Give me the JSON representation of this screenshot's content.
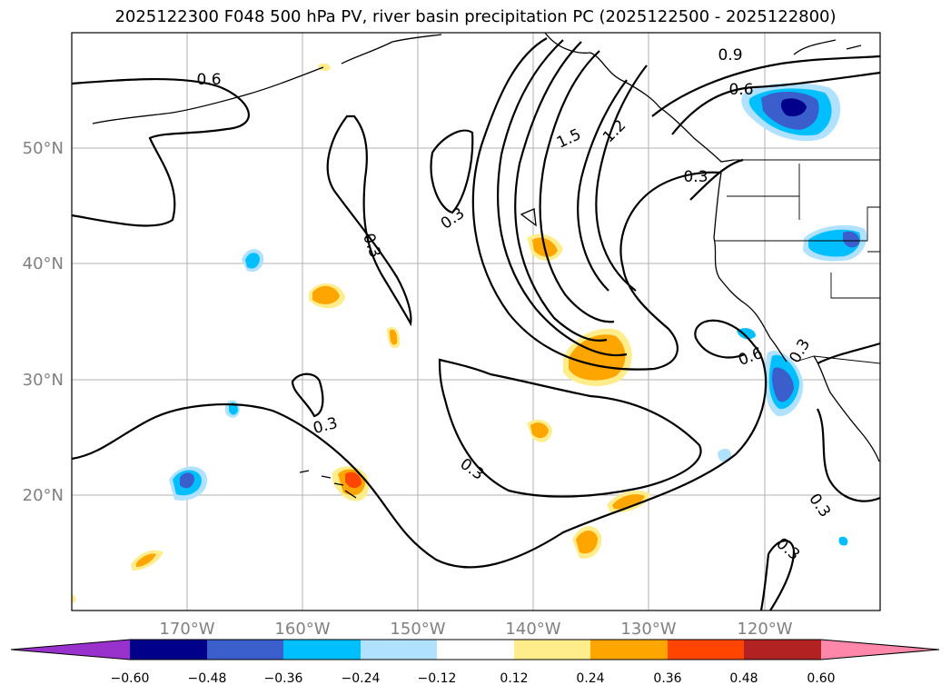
{
  "title": "2025122300 F048 500 hPa PV, river basin precipitation PC (2025122500 - 2025122800)",
  "map": {
    "lat_labels": [
      "50°N",
      "40°N",
      "30°N",
      "20°N"
    ],
    "lon_labels": [
      "170°W",
      "160°W",
      "150°W",
      "140°W",
      "130°W",
      "120°W"
    ],
    "extent": {
      "lon_min": -180,
      "lon_max": -110,
      "lat_min": 10,
      "lat_max": 60
    }
  },
  "contours": {
    "labels": [
      "0.6",
      "0.9",
      "0.6",
      "1.5",
      "1.2",
      "0.3",
      "0.3",
      "0.3",
      "0.3",
      "0.6",
      "0.3",
      "0.3",
      "0.3",
      "0.3",
      "0.3"
    ]
  },
  "colorbar": {
    "ticks": [
      "−0.60",
      "−0.48",
      "−0.36",
      "−0.24",
      "−0.12",
      "0.12",
      "0.24",
      "0.36",
      "0.48",
      "0.60"
    ],
    "colors": [
      "#9932cc",
      "#00008b",
      "#3a5fcd",
      "#00bfff",
      "#b0e2ff",
      "#ffffff",
      "#ffec8b",
      "#ffa500",
      "#ff4500",
      "#b22222",
      "#ff88aa"
    ]
  }
}
